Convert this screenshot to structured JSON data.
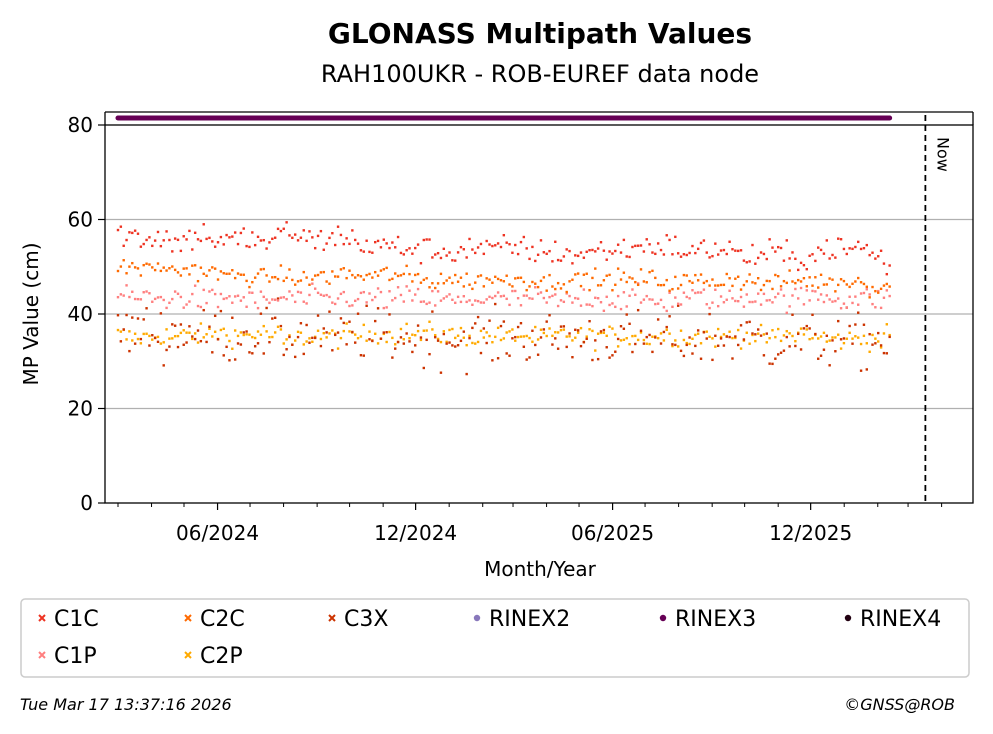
{
  "chart_data": {
    "type": "scatter",
    "title": "GLONASS Multipath Values",
    "subtitle": "RAH100UKR - ROB-EUREF data node",
    "xlabel": "Month/Year",
    "ylabel": "MP Value (cm)",
    "ylim": [
      0,
      80
    ],
    "y_ticks": [
      "0",
      "20",
      "40",
      "60",
      "80"
    ],
    "x_axis_type": "date",
    "xlim": [
      "2024-02-18",
      "2026-04-30"
    ],
    "x_ticks": [
      {
        "date": "2024-06-01",
        "label": "06/2024"
      },
      {
        "date": "2024-12-01",
        "label": "12/2024"
      },
      {
        "date": "2025-06-01",
        "label": "06/2025"
      },
      {
        "date": "2025-12-01",
        "label": "12/2025"
      }
    ],
    "grid": "horizontal",
    "now_marker": {
      "date": "2026-03-17",
      "label": "Now"
    },
    "series": [
      {
        "name": "C1C",
        "color": "#ee3322",
        "start": "2024-03-01",
        "end": "2026-02-12",
        "values": [
          57.0,
          56.5,
          56.0,
          56.5,
          55.0,
          56.0,
          57.0,
          55.5,
          55.5,
          56.0,
          55.0,
          56.0,
          57.5,
          56.0,
          55.5,
          56.5,
          56.0,
          55.0,
          54.0,
          54.5,
          54.0,
          53.5,
          53.5,
          53.0,
          53.5,
          54.0,
          53.5,
          54.0,
          54.0,
          53.5,
          53.0,
          53.0,
          52.5,
          53.0,
          53.5,
          53.5,
          54.0,
          54.5,
          54.5,
          54.0,
          53.0,
          53.5,
          54.0,
          53.5,
          52.0,
          52.5,
          53.0,
          52.0,
          52.0,
          53.0,
          54.0,
          53.5,
          54.0,
          52.5,
          50.0
        ]
      },
      {
        "name": "C2C",
        "color": "#ff6a00",
        "start": "2024-03-01",
        "end": "2026-02-12",
        "values": [
          50.0,
          50.0,
          49.5,
          50.0,
          49.0,
          49.5,
          49.0,
          48.5,
          48.0,
          48.0,
          47.5,
          48.0,
          48.0,
          47.0,
          48.0,
          48.0,
          48.5,
          48.0,
          48.0,
          48.5,
          48.0,
          47.5,
          47.0,
          47.5,
          47.0,
          47.0,
          47.5,
          47.0,
          47.5,
          47.0,
          46.5,
          47.0,
          47.0,
          47.5,
          47.0,
          47.5,
          47.0,
          47.5,
          47.0,
          46.5,
          47.0,
          47.0,
          47.0,
          47.5,
          47.0,
          46.5,
          46.5,
          47.0,
          47.0,
          47.0,
          46.5,
          47.0,
          47.0,
          45.5,
          46.0
        ]
      },
      {
        "name": "C3X",
        "color": "#cc3300",
        "start": "2024-03-01",
        "end": "2026-02-12",
        "values": [
          37.0,
          36.0,
          36.5,
          35.5,
          36.0,
          36.5,
          35.0,
          36.0,
          35.5,
          36.0,
          35.5,
          36.0,
          35.0,
          35.5,
          36.0,
          34.5,
          35.0,
          36.0,
          35.0,
          35.5,
          35.0,
          34.5,
          35.0,
          35.0,
          34.5,
          35.0,
          34.5,
          35.0,
          35.5,
          35.0,
          34.5,
          35.0,
          35.0,
          34.5,
          35.0,
          35.5,
          34.5,
          34.5,
          35.0,
          35.0,
          34.5,
          35.0,
          34.5,
          35.0,
          35.0,
          34.5,
          34.0,
          35.0,
          34.5,
          34.0,
          34.5,
          35.0,
          34.0,
          34.5,
          34.0
        ]
      },
      {
        "name": "C1P",
        "color": "#ff7f7f",
        "start": "2024-03-01",
        "end": "2026-02-12",
        "values": [
          44.0,
          43.5,
          43.5,
          43.0,
          43.5,
          43.5,
          43.0,
          43.0,
          43.5,
          43.0,
          42.5,
          43.0,
          43.5,
          43.0,
          43.5,
          43.0,
          43.5,
          43.0,
          43.5,
          43.0,
          43.5,
          43.5,
          43.0,
          43.0,
          42.5,
          43.0,
          43.5,
          43.0,
          43.0,
          43.5,
          43.0,
          42.5,
          43.0,
          43.5,
          43.0,
          43.0,
          43.5,
          43.0,
          42.5,
          43.0,
          43.5,
          43.5,
          43.0,
          43.0,
          43.5,
          44.0,
          43.5,
          43.0,
          43.5,
          44.0,
          43.5,
          43.0,
          43.5,
          43.0,
          43.5
        ]
      },
      {
        "name": "C2P",
        "color": "#ffaa00",
        "start": "2024-03-01",
        "end": "2026-02-12",
        "values": [
          35.5,
          35.0,
          35.0,
          35.5,
          35.0,
          35.5,
          35.5,
          36.0,
          35.5,
          35.5,
          36.0,
          35.5,
          34.0,
          35.0,
          35.5,
          35.0,
          35.5,
          35.5,
          36.0,
          35.5,
          36.0,
          35.5,
          36.0,
          35.5,
          35.5,
          35.0,
          35.5,
          35.0,
          35.5,
          35.0,
          35.0,
          35.5,
          35.5,
          35.0,
          35.5,
          35.0,
          35.5,
          35.0,
          35.5,
          35.5,
          35.0,
          35.5,
          35.0,
          35.5,
          35.5,
          35.0,
          35.0,
          35.5,
          36.0,
          35.0,
          34.5,
          34.5,
          35.0,
          34.5,
          35.5
        ]
      },
      {
        "name": "RINEX2",
        "color": "#8877bb",
        "values": []
      },
      {
        "name": "RINEX3",
        "color": "#660055",
        "start": "2024-03-01",
        "end": "2026-02-12",
        "values": [
          81,
          81
        ]
      },
      {
        "name": "RINEX4",
        "color": "#220011",
        "values": []
      }
    ],
    "legend": {
      "placement": "bottom",
      "columns": 6
    }
  },
  "footer": {
    "timestamp": "Tue Mar 17 13:37:16 2026",
    "credit": "©GNSS@ROB"
  }
}
